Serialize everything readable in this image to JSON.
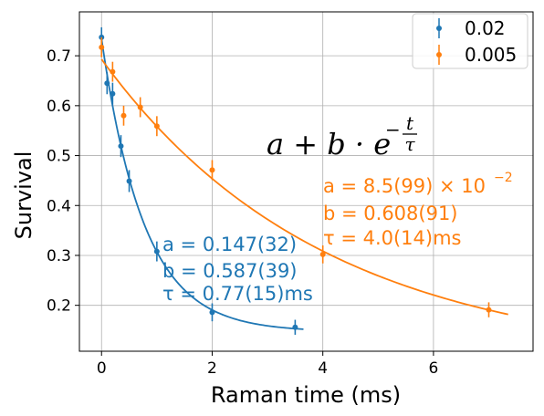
{
  "chart_data": {
    "type": "scatter",
    "xlabel": "Raman time (ms)",
    "ylabel": "Survival",
    "xlim": [
      -0.4,
      7.8
    ],
    "ylim": [
      0.108,
      0.788
    ],
    "xticks": [
      0,
      2,
      4,
      6
    ],
    "yticks": [
      0.2,
      0.3,
      0.4,
      0.5,
      0.6,
      0.7
    ],
    "grid": true,
    "legend_position": "top-right",
    "colors": {
      "blue": "#1f77b4",
      "orange": "#ff7f0e"
    },
    "formula": {
      "main": "a + b · e",
      "exponent_sign": "−",
      "exponent_num": "t",
      "exponent_den": "τ"
    },
    "series": [
      {
        "name": "0.02",
        "color": "#1f77b4",
        "points": [
          {
            "x": 0.0,
            "y": 0.737,
            "err": 0.02
          },
          {
            "x": 0.1,
            "y": 0.645,
            "err": 0.022
          },
          {
            "x": 0.2,
            "y": 0.624,
            "err": 0.022
          },
          {
            "x": 0.35,
            "y": 0.519,
            "err": 0.022
          },
          {
            "x": 0.5,
            "y": 0.449,
            "err": 0.022
          },
          {
            "x": 1.0,
            "y": 0.308,
            "err": 0.02
          },
          {
            "x": 2.0,
            "y": 0.186,
            "err": 0.018
          },
          {
            "x": 3.5,
            "y": 0.156,
            "err": 0.015
          }
        ],
        "fit": {
          "a": 0.147,
          "b": 0.587,
          "tau": 0.77,
          "x_range": [
            0,
            3.65
          ]
        },
        "annotation": [
          "a = 0.147(32)",
          "b = 0.587(39)",
          "τ = 0.77(15)ms"
        ]
      },
      {
        "name": "0.005",
        "color": "#ff7f0e",
        "points": [
          {
            "x": 0.0,
            "y": 0.717,
            "err": 0.02
          },
          {
            "x": 0.2,
            "y": 0.668,
            "err": 0.02
          },
          {
            "x": 0.4,
            "y": 0.58,
            "err": 0.02
          },
          {
            "x": 0.7,
            "y": 0.597,
            "err": 0.02
          },
          {
            "x": 1.0,
            "y": 0.559,
            "err": 0.02
          },
          {
            "x": 2.0,
            "y": 0.471,
            "err": 0.02
          },
          {
            "x": 4.0,
            "y": 0.302,
            "err": 0.018
          },
          {
            "x": 7.0,
            "y": 0.191,
            "err": 0.015
          }
        ],
        "fit": {
          "a": 0.085,
          "b": 0.608,
          "tau": 4.0,
          "x_range": [
            0,
            7.35
          ]
        },
        "annotation": [
          "a = 8.5(99) × 10",
          "b = 0.608(91)",
          "τ = 4.0(14)ms"
        ],
        "annotation_sup": "−2"
      }
    ]
  }
}
